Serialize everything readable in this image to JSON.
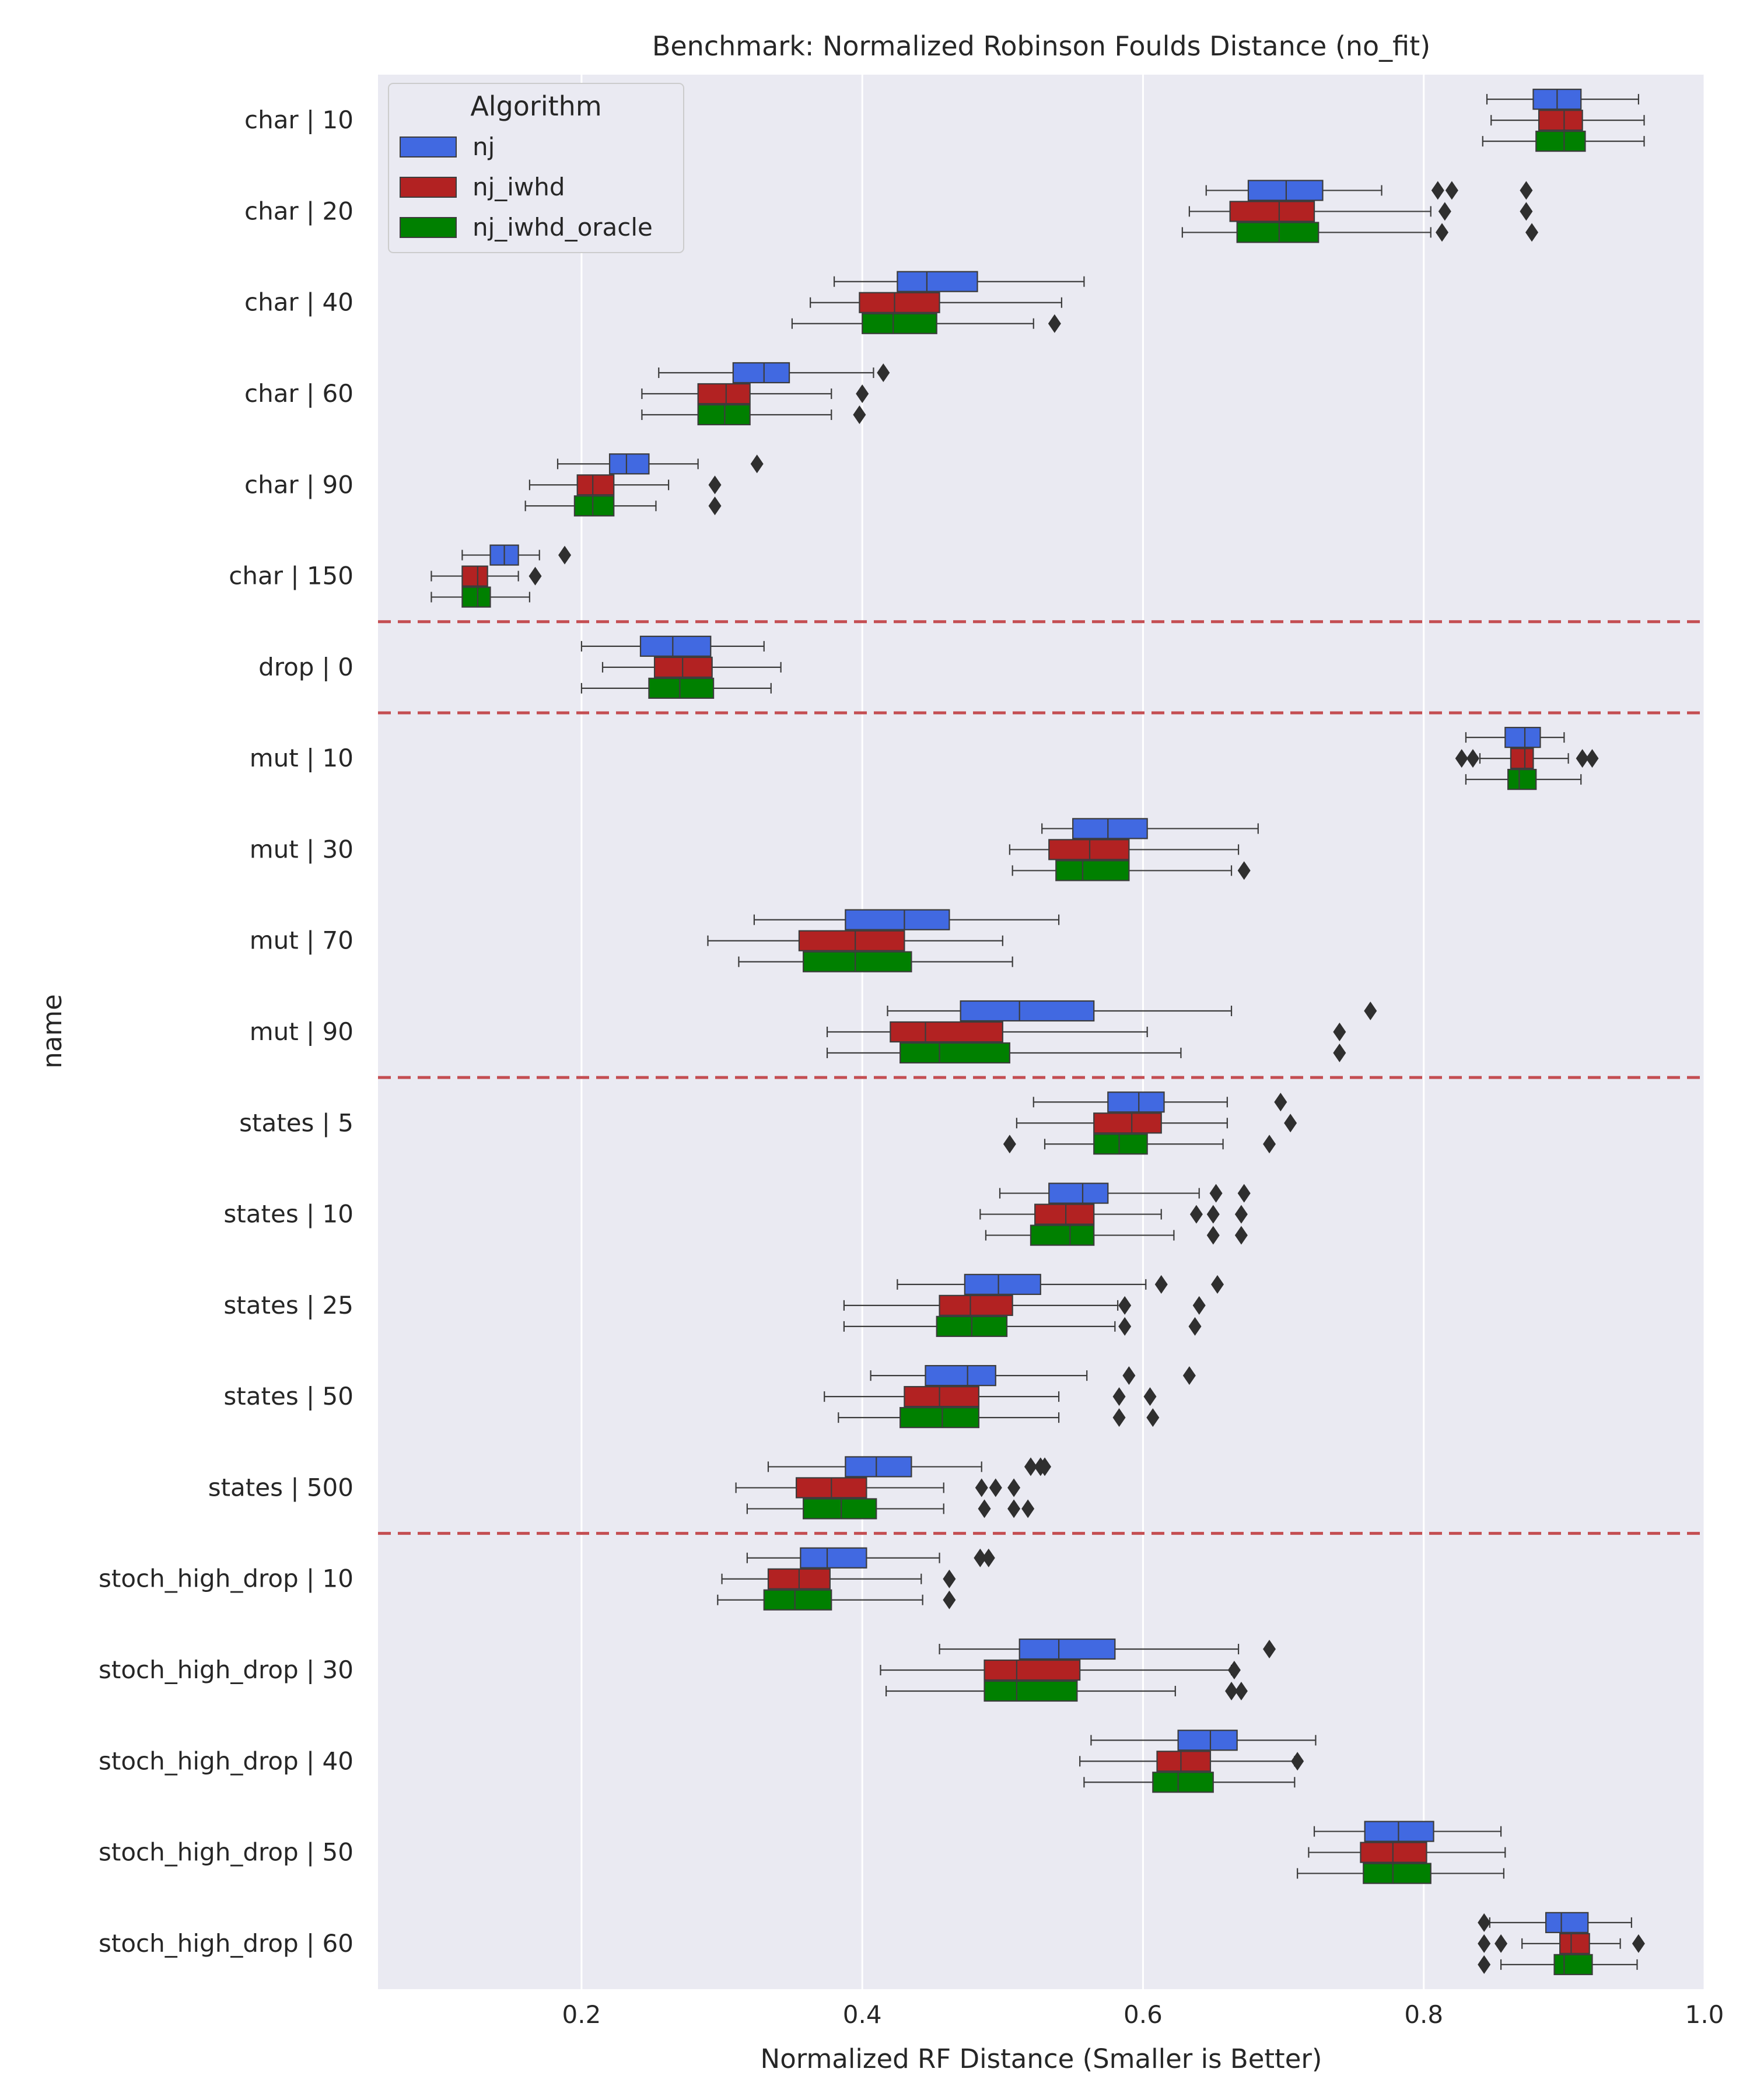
{
  "chart_data": {
    "type": "box",
    "orientation": "horizontal",
    "title": "Benchmark: Normalized Robinson Foulds Distance (no_fit)",
    "xlabel": "Normalized RF Distance (Smaller is Better)",
    "ylabel": "name",
    "xlim": [
      0.055,
      1.0
    ],
    "xticks": [
      0.2,
      0.4,
      0.6,
      0.8,
      1.0
    ],
    "xtick_labels": [
      "0.2",
      "0.4",
      "0.6",
      "0.8",
      "1.0"
    ],
    "grid": true,
    "legend": {
      "title": "Algorithm",
      "position": "top-left"
    },
    "categories": [
      "char | 10",
      "char | 20",
      "char | 40",
      "char | 60",
      "char | 90",
      "char | 150",
      "drop | 0",
      "mut | 10",
      "mut | 30",
      "mut | 70",
      "mut | 90",
      "states | 5",
      "states | 10",
      "states | 25",
      "states | 50",
      "states | 500",
      "stoch_high_drop | 10",
      "stoch_high_drop | 30",
      "stoch_high_drop | 40",
      "stoch_high_drop | 50",
      "stoch_high_drop | 60"
    ],
    "group_separators_after_index": [
      5,
      6,
      10,
      15
    ],
    "separator_color": "#c44e52",
    "series": [
      {
        "name": "nj",
        "color": "#4169e1",
        "boxes": [
          {
            "whislo": 0.845,
            "q1": 0.878,
            "med": 0.895,
            "q3": 0.912,
            "whishi": 0.953,
            "fliers": []
          },
          {
            "whislo": 0.645,
            "q1": 0.675,
            "med": 0.702,
            "q3": 0.728,
            "whishi": 0.77,
            "fliers": [
              0.81,
              0.82,
              0.873
            ]
          },
          {
            "whislo": 0.38,
            "q1": 0.425,
            "med": 0.446,
            "q3": 0.482,
            "whishi": 0.558,
            "fliers": []
          },
          {
            "whislo": 0.255,
            "q1": 0.308,
            "med": 0.33,
            "q3": 0.348,
            "whishi": 0.408,
            "fliers": [
              0.415
            ]
          },
          {
            "whislo": 0.183,
            "q1": 0.22,
            "med": 0.232,
            "q3": 0.248,
            "whishi": 0.283,
            "fliers": [
              0.325
            ]
          },
          {
            "whislo": 0.115,
            "q1": 0.135,
            "med": 0.145,
            "q3": 0.155,
            "whishi": 0.17,
            "fliers": [
              0.188
            ]
          },
          {
            "whislo": 0.2,
            "q1": 0.242,
            "med": 0.265,
            "q3": 0.292,
            "whishi": 0.33,
            "fliers": []
          },
          {
            "whislo": 0.83,
            "q1": 0.858,
            "med": 0.872,
            "q3": 0.883,
            "whishi": 0.9,
            "fliers": []
          },
          {
            "whislo": 0.528,
            "q1": 0.55,
            "med": 0.575,
            "q3": 0.603,
            "whishi": 0.682,
            "fliers": []
          },
          {
            "whislo": 0.323,
            "q1": 0.388,
            "med": 0.43,
            "q3": 0.462,
            "whishi": 0.54,
            "fliers": []
          },
          {
            "whislo": 0.418,
            "q1": 0.47,
            "med": 0.512,
            "q3": 0.565,
            "whishi": 0.663,
            "fliers": [
              0.762
            ]
          },
          {
            "whislo": 0.522,
            "q1": 0.575,
            "med": 0.597,
            "q3": 0.615,
            "whishi": 0.66,
            "fliers": [
              0.698
            ]
          },
          {
            "whislo": 0.498,
            "q1": 0.533,
            "med": 0.557,
            "q3": 0.575,
            "whishi": 0.64,
            "fliers": [
              0.652,
              0.672
            ]
          },
          {
            "whislo": 0.425,
            "q1": 0.473,
            "med": 0.497,
            "q3": 0.527,
            "whishi": 0.602,
            "fliers": [
              0.613,
              0.653
            ]
          },
          {
            "whislo": 0.406,
            "q1": 0.445,
            "med": 0.475,
            "q3": 0.495,
            "whishi": 0.56,
            "fliers": [
              0.59,
              0.633
            ]
          },
          {
            "whislo": 0.333,
            "q1": 0.388,
            "med": 0.41,
            "q3": 0.435,
            "whishi": 0.485,
            "fliers": [
              0.52,
              0.527,
              0.53
            ]
          },
          {
            "whislo": 0.318,
            "q1": 0.356,
            "med": 0.375,
            "q3": 0.403,
            "whishi": 0.455,
            "fliers": [
              0.484,
              0.49
            ]
          },
          {
            "whislo": 0.455,
            "q1": 0.512,
            "med": 0.54,
            "q3": 0.58,
            "whishi": 0.668,
            "fliers": [
              0.69
            ]
          },
          {
            "whislo": 0.563,
            "q1": 0.625,
            "med": 0.648,
            "q3": 0.667,
            "whishi": 0.723,
            "fliers": []
          },
          {
            "whislo": 0.722,
            "q1": 0.758,
            "med": 0.782,
            "q3": 0.807,
            "whishi": 0.855,
            "fliers": []
          },
          {
            "whislo": 0.847,
            "q1": 0.887,
            "med": 0.898,
            "q3": 0.917,
            "whishi": 0.948,
            "fliers": [
              0.843
            ]
          }
        ]
      },
      {
        "name": "nj_iwhd",
        "color": "#b22222",
        "boxes": [
          {
            "whislo": 0.848,
            "q1": 0.882,
            "med": 0.9,
            "q3": 0.913,
            "whishi": 0.957,
            "fliers": []
          },
          {
            "whislo": 0.633,
            "q1": 0.662,
            "med": 0.697,
            "q3": 0.722,
            "whishi": 0.805,
            "fliers": [
              0.815,
              0.873
            ]
          },
          {
            "whislo": 0.363,
            "q1": 0.398,
            "med": 0.423,
            "q3": 0.455,
            "whishi": 0.542,
            "fliers": []
          },
          {
            "whislo": 0.243,
            "q1": 0.283,
            "med": 0.303,
            "q3": 0.32,
            "whishi": 0.378,
            "fliers": [
              0.4
            ]
          },
          {
            "whislo": 0.163,
            "q1": 0.197,
            "med": 0.208,
            "q3": 0.223,
            "whishi": 0.262,
            "fliers": [
              0.295
            ]
          },
          {
            "whislo": 0.093,
            "q1": 0.115,
            "med": 0.126,
            "q3": 0.133,
            "whishi": 0.155,
            "fliers": [
              0.167
            ]
          },
          {
            "whislo": 0.215,
            "q1": 0.252,
            "med": 0.272,
            "q3": 0.293,
            "whishi": 0.342,
            "fliers": []
          },
          {
            "whislo": 0.84,
            "q1": 0.862,
            "med": 0.872,
            "q3": 0.878,
            "whishi": 0.903,
            "fliers": [
              0.827,
              0.835,
              0.913,
              0.92
            ]
          },
          {
            "whislo": 0.505,
            "q1": 0.533,
            "med": 0.562,
            "q3": 0.59,
            "whishi": 0.668,
            "fliers": []
          },
          {
            "whislo": 0.29,
            "q1": 0.355,
            "med": 0.395,
            "q3": 0.43,
            "whishi": 0.5,
            "fliers": []
          },
          {
            "whislo": 0.375,
            "q1": 0.42,
            "med": 0.445,
            "q3": 0.5,
            "whishi": 0.603,
            "fliers": [
              0.74
            ]
          },
          {
            "whislo": 0.51,
            "q1": 0.565,
            "med": 0.592,
            "q3": 0.613,
            "whishi": 0.66,
            "fliers": [
              0.705
            ]
          },
          {
            "whislo": 0.484,
            "q1": 0.523,
            "med": 0.545,
            "q3": 0.565,
            "whishi": 0.613,
            "fliers": [
              0.638,
              0.65,
              0.67
            ]
          },
          {
            "whislo": 0.387,
            "q1": 0.455,
            "med": 0.477,
            "q3": 0.507,
            "whishi": 0.582,
            "fliers": [
              0.587,
              0.64
            ]
          },
          {
            "whislo": 0.373,
            "q1": 0.43,
            "med": 0.455,
            "q3": 0.483,
            "whishi": 0.54,
            "fliers": [
              0.583,
              0.605
            ]
          },
          {
            "whislo": 0.31,
            "q1": 0.353,
            "med": 0.378,
            "q3": 0.403,
            "whishi": 0.458,
            "fliers": [
              0.485,
              0.495,
              0.508
            ]
          },
          {
            "whislo": 0.3,
            "q1": 0.333,
            "med": 0.355,
            "q3": 0.377,
            "whishi": 0.442,
            "fliers": [
              0.462
            ]
          },
          {
            "whislo": 0.413,
            "q1": 0.487,
            "med": 0.51,
            "q3": 0.555,
            "whishi": 0.663,
            "fliers": [
              0.665
            ]
          },
          {
            "whislo": 0.555,
            "q1": 0.61,
            "med": 0.627,
            "q3": 0.648,
            "whishi": 0.708,
            "fliers": [
              0.71
            ]
          },
          {
            "whislo": 0.718,
            "q1": 0.755,
            "med": 0.778,
            "q3": 0.802,
            "whishi": 0.858,
            "fliers": []
          },
          {
            "whislo": 0.87,
            "q1": 0.897,
            "med": 0.905,
            "q3": 0.918,
            "whishi": 0.94,
            "fliers": [
              0.843,
              0.855,
              0.953
            ]
          }
        ]
      },
      {
        "name": "nj_iwhd_oracle",
        "color": "#008000",
        "boxes": [
          {
            "whislo": 0.842,
            "q1": 0.88,
            "med": 0.9,
            "q3": 0.915,
            "whishi": 0.957,
            "fliers": []
          },
          {
            "whislo": 0.628,
            "q1": 0.667,
            "med": 0.697,
            "q3": 0.725,
            "whishi": 0.805,
            "fliers": [
              0.813,
              0.877
            ]
          },
          {
            "whislo": 0.35,
            "q1": 0.4,
            "med": 0.422,
            "q3": 0.453,
            "whishi": 0.522,
            "fliers": [
              0.537
            ]
          },
          {
            "whislo": 0.243,
            "q1": 0.283,
            "med": 0.302,
            "q3": 0.32,
            "whishi": 0.378,
            "fliers": [
              0.398
            ]
          },
          {
            "whislo": 0.16,
            "q1": 0.195,
            "med": 0.208,
            "q3": 0.223,
            "whishi": 0.253,
            "fliers": [
              0.295
            ]
          },
          {
            "whislo": 0.093,
            "q1": 0.115,
            "med": 0.126,
            "q3": 0.135,
            "whishi": 0.163,
            "fliers": []
          },
          {
            "whislo": 0.2,
            "q1": 0.248,
            "med": 0.27,
            "q3": 0.294,
            "whishi": 0.335,
            "fliers": []
          },
          {
            "whislo": 0.83,
            "q1": 0.86,
            "med": 0.868,
            "q3": 0.88,
            "whishi": 0.912,
            "fliers": []
          },
          {
            "whislo": 0.507,
            "q1": 0.538,
            "med": 0.557,
            "q3": 0.59,
            "whishi": 0.663,
            "fliers": [
              0.672
            ]
          },
          {
            "whislo": 0.312,
            "q1": 0.358,
            "med": 0.395,
            "q3": 0.435,
            "whishi": 0.507,
            "fliers": []
          },
          {
            "whislo": 0.375,
            "q1": 0.427,
            "med": 0.455,
            "q3": 0.505,
            "whishi": 0.627,
            "fliers": [
              0.74
            ]
          },
          {
            "whislo": 0.53,
            "q1": 0.565,
            "med": 0.583,
            "q3": 0.603,
            "whishi": 0.657,
            "fliers": [
              0.505,
              0.69
            ]
          },
          {
            "whislo": 0.488,
            "q1": 0.52,
            "med": 0.548,
            "q3": 0.565,
            "whishi": 0.622,
            "fliers": [
              0.65,
              0.67
            ]
          },
          {
            "whislo": 0.387,
            "q1": 0.453,
            "med": 0.478,
            "q3": 0.503,
            "whishi": 0.58,
            "fliers": [
              0.587,
              0.637
            ]
          },
          {
            "whislo": 0.383,
            "q1": 0.427,
            "med": 0.457,
            "q3": 0.483,
            "whishi": 0.54,
            "fliers": [
              0.583,
              0.607
            ]
          },
          {
            "whislo": 0.318,
            "q1": 0.358,
            "med": 0.385,
            "q3": 0.41,
            "whishi": 0.458,
            "fliers": [
              0.487,
              0.508,
              0.518
            ]
          },
          {
            "whislo": 0.297,
            "q1": 0.33,
            "med": 0.352,
            "q3": 0.378,
            "whishi": 0.443,
            "fliers": [
              0.462
            ]
          },
          {
            "whislo": 0.417,
            "q1": 0.487,
            "med": 0.51,
            "q3": 0.553,
            "whishi": 0.623,
            "fliers": [
              0.663,
              0.67
            ]
          },
          {
            "whislo": 0.558,
            "q1": 0.607,
            "med": 0.625,
            "q3": 0.65,
            "whishi": 0.708,
            "fliers": []
          },
          {
            "whislo": 0.71,
            "q1": 0.757,
            "med": 0.778,
            "q3": 0.805,
            "whishi": 0.857,
            "fliers": []
          },
          {
            "whislo": 0.855,
            "q1": 0.893,
            "med": 0.9,
            "q3": 0.92,
            "whishi": 0.952,
            "fliers": [
              0.843
            ]
          }
        ]
      }
    ]
  }
}
